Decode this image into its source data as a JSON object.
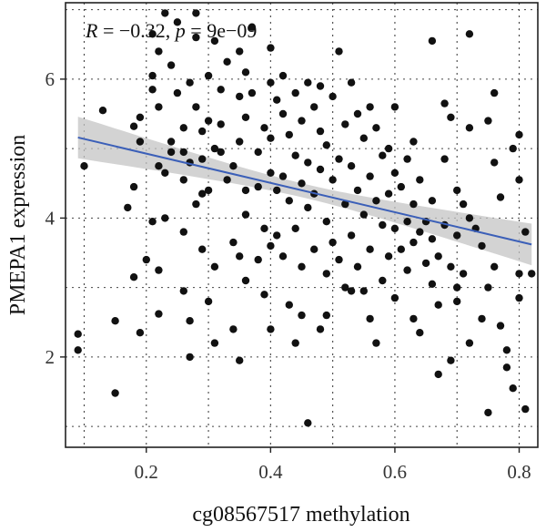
{
  "chart_data": {
    "type": "scatter",
    "title": "",
    "xlabel": "cg08567517 methylation",
    "ylabel": "PMEPA1 expression",
    "xlim": [
      0.07,
      0.83
    ],
    "ylim": [
      0.7,
      7.1
    ],
    "xticks": [
      0.2,
      0.4,
      0.6,
      0.8
    ],
    "yticks": [
      2,
      4,
      6
    ],
    "x_tick_labels": [
      "0.2",
      "0.4",
      "0.6",
      "0.8"
    ],
    "y_tick_labels": [
      "2",
      "4",
      "6"
    ],
    "grid": "dotted",
    "annotation": {
      "r_label": "R",
      "r_text": " = −0.32, ",
      "p_label": "p",
      "p_text": " = 9e−09"
    },
    "regression": {
      "x": [
        0.09,
        0.82
      ],
      "y": [
        5.16,
        3.62
      ],
      "ci_width_at_ends": 0.3,
      "ci_width_at_center": 0.1,
      "line_color": "#3b5fb8",
      "band_color": "#c4c4c4"
    },
    "point_color": "#111111",
    "points": [
      [
        0.09,
        2.33
      ],
      [
        0.09,
        2.1
      ],
      [
        0.1,
        4.75
      ],
      [
        0.13,
        5.55
      ],
      [
        0.15,
        1.48
      ],
      [
        0.15,
        2.52
      ],
      [
        0.17,
        4.15
      ],
      [
        0.18,
        5.32
      ],
      [
        0.18,
        4.45
      ],
      [
        0.18,
        3.15
      ],
      [
        0.19,
        5.45
      ],
      [
        0.19,
        5.1
      ],
      [
        0.2,
        3.4
      ],
      [
        0.21,
        6.65
      ],
      [
        0.21,
        6.05
      ],
      [
        0.21,
        5.85
      ],
      [
        0.22,
        6.4
      ],
      [
        0.22,
        5.6
      ],
      [
        0.22,
        4.75
      ],
      [
        0.22,
        3.25
      ],
      [
        0.22,
        2.62
      ],
      [
        0.23,
        4.0
      ],
      [
        0.23,
        4.65
      ],
      [
        0.23,
        6.95
      ],
      [
        0.24,
        6.2
      ],
      [
        0.24,
        5.1
      ],
      [
        0.25,
        6.82
      ],
      [
        0.25,
        5.8
      ],
      [
        0.26,
        5.3
      ],
      [
        0.26,
        4.95
      ],
      [
        0.26,
        4.55
      ],
      [
        0.26,
        3.8
      ],
      [
        0.26,
        2.95
      ],
      [
        0.27,
        5.95
      ],
      [
        0.27,
        4.8
      ],
      [
        0.27,
        2.52
      ],
      [
        0.27,
        2.0
      ],
      [
        0.28,
        6.95
      ],
      [
        0.28,
        6.6
      ],
      [
        0.28,
        5.6
      ],
      [
        0.29,
        5.25
      ],
      [
        0.29,
        4.85
      ],
      [
        0.29,
        4.35
      ],
      [
        0.29,
        3.55
      ],
      [
        0.3,
        6.05
      ],
      [
        0.3,
        5.4
      ],
      [
        0.3,
        4.4
      ],
      [
        0.3,
        2.8
      ],
      [
        0.31,
        6.55
      ],
      [
        0.31,
        5.0
      ],
      [
        0.31,
        3.3
      ],
      [
        0.31,
        2.2
      ],
      [
        0.32,
        5.85
      ],
      [
        0.32,
        5.35
      ],
      [
        0.32,
        4.95
      ],
      [
        0.33,
        6.25
      ],
      [
        0.33,
        4.55
      ],
      [
        0.34,
        4.75
      ],
      [
        0.34,
        3.65
      ],
      [
        0.35,
        6.4
      ],
      [
        0.35,
        5.75
      ],
      [
        0.35,
        5.1
      ],
      [
        0.35,
        3.45
      ],
      [
        0.35,
        1.95
      ],
      [
        0.36,
        6.1
      ],
      [
        0.36,
        5.45
      ],
      [
        0.36,
        4.05
      ],
      [
        0.36,
        3.1
      ],
      [
        0.37,
        6.75
      ],
      [
        0.37,
        5.8
      ],
      [
        0.38,
        4.95
      ],
      [
        0.38,
        4.45
      ],
      [
        0.38,
        3.4
      ],
      [
        0.39,
        5.3
      ],
      [
        0.39,
        3.85
      ],
      [
        0.4,
        6.45
      ],
      [
        0.4,
        5.95
      ],
      [
        0.4,
        5.15
      ],
      [
        0.4,
        4.65
      ],
      [
        0.4,
        3.6
      ],
      [
        0.4,
        2.4
      ],
      [
        0.41,
        5.7
      ],
      [
        0.41,
        4.4
      ],
      [
        0.41,
        3.75
      ],
      [
        0.42,
        6.05
      ],
      [
        0.42,
        5.5
      ],
      [
        0.42,
        4.6
      ],
      [
        0.42,
        3.45
      ],
      [
        0.43,
        5.2
      ],
      [
        0.43,
        4.25
      ],
      [
        0.43,
        2.75
      ],
      [
        0.44,
        5.8
      ],
      [
        0.44,
        4.9
      ],
      [
        0.44,
        3.85
      ],
      [
        0.45,
        5.4
      ],
      [
        0.45,
        4.5
      ],
      [
        0.45,
        3.3
      ],
      [
        0.45,
        2.6
      ],
      [
        0.46,
        5.95
      ],
      [
        0.46,
        4.8
      ],
      [
        0.46,
        4.15
      ],
      [
        0.46,
        1.05
      ],
      [
        0.47,
        5.6
      ],
      [
        0.47,
        4.35
      ],
      [
        0.47,
        3.55
      ],
      [
        0.48,
        5.25
      ],
      [
        0.48,
        4.7
      ],
      [
        0.48,
        2.4
      ],
      [
        0.49,
        5.05
      ],
      [
        0.49,
        3.95
      ],
      [
        0.49,
        3.2
      ],
      [
        0.5,
        5.75
      ],
      [
        0.5,
        4.55
      ],
      [
        0.5,
        3.65
      ],
      [
        0.51,
        6.4
      ],
      [
        0.51,
        4.85
      ],
      [
        0.51,
        3.4
      ],
      [
        0.52,
        5.35
      ],
      [
        0.52,
        4.2
      ],
      [
        0.52,
        3.0
      ],
      [
        0.53,
        5.95
      ],
      [
        0.53,
        4.75
      ],
      [
        0.53,
        3.75
      ],
      [
        0.54,
        5.5
      ],
      [
        0.54,
        4.4
      ],
      [
        0.54,
        3.3
      ],
      [
        0.55,
        5.15
      ],
      [
        0.55,
        4.05
      ],
      [
        0.55,
        2.95
      ],
      [
        0.56,
        5.6
      ],
      [
        0.56,
        4.6
      ],
      [
        0.56,
        3.55
      ],
      [
        0.56,
        2.55
      ],
      [
        0.57,
        5.3
      ],
      [
        0.57,
        4.25
      ],
      [
        0.58,
        4.9
      ],
      [
        0.58,
        3.9
      ],
      [
        0.58,
        3.1
      ],
      [
        0.59,
        5.0
      ],
      [
        0.59,
        4.35
      ],
      [
        0.59,
        3.45
      ],
      [
        0.6,
        4.65
      ],
      [
        0.6,
        3.85
      ],
      [
        0.6,
        2.85
      ],
      [
        0.61,
        4.45
      ],
      [
        0.61,
        3.55
      ],
      [
        0.62,
        4.85
      ],
      [
        0.62,
        3.95
      ],
      [
        0.62,
        3.25
      ],
      [
        0.63,
        4.2
      ],
      [
        0.63,
        3.65
      ],
      [
        0.63,
        2.55
      ],
      [
        0.64,
        4.55
      ],
      [
        0.64,
        3.8
      ],
      [
        0.64,
        2.35
      ],
      [
        0.65,
        3.95
      ],
      [
        0.65,
        3.35
      ],
      [
        0.66,
        6.55
      ],
      [
        0.66,
        4.25
      ],
      [
        0.66,
        3.7
      ],
      [
        0.67,
        3.45
      ],
      [
        0.67,
        2.75
      ],
      [
        0.67,
        1.75
      ],
      [
        0.68,
        5.65
      ],
      [
        0.68,
        4.85
      ],
      [
        0.68,
        3.9
      ],
      [
        0.69,
        5.45
      ],
      [
        0.69,
        3.3
      ],
      [
        0.69,
        1.95
      ],
      [
        0.7,
        4.4
      ],
      [
        0.7,
        3.75
      ],
      [
        0.7,
        2.8
      ],
      [
        0.71,
        4.2
      ],
      [
        0.71,
        3.2
      ],
      [
        0.72,
        6.65
      ],
      [
        0.72,
        5.3
      ],
      [
        0.72,
        4.0
      ],
      [
        0.72,
        2.2
      ],
      [
        0.73,
        3.85
      ],
      [
        0.74,
        3.6
      ],
      [
        0.75,
        5.4
      ],
      [
        0.75,
        3.0
      ],
      [
        0.75,
        1.2
      ],
      [
        0.76,
        5.8
      ],
      [
        0.76,
        4.8
      ],
      [
        0.77,
        4.3
      ],
      [
        0.77,
        2.45
      ],
      [
        0.78,
        1.85
      ],
      [
        0.79,
        5.0
      ],
      [
        0.79,
        1.55
      ],
      [
        0.8,
        5.2
      ],
      [
        0.8,
        4.55
      ],
      [
        0.8,
        3.2
      ],
      [
        0.8,
        2.85
      ],
      [
        0.81,
        1.25
      ],
      [
        0.81,
        3.8
      ],
      [
        0.82,
        3.2
      ],
      [
        0.57,
        2.2
      ],
      [
        0.53,
        2.95
      ],
      [
        0.49,
        2.6
      ],
      [
        0.44,
        2.2
      ],
      [
        0.39,
        2.9
      ],
      [
        0.34,
        2.4
      ],
      [
        0.66,
        3.05
      ],
      [
        0.7,
        3.0
      ],
      [
        0.74,
        2.55
      ],
      [
        0.76,
        3.3
      ],
      [
        0.78,
        2.1
      ],
      [
        0.6,
        5.6
      ],
      [
        0.63,
        5.1
      ],
      [
        0.48,
        5.9
      ],
      [
        0.36,
        4.4
      ],
      [
        0.28,
        4.2
      ],
      [
        0.24,
        4.95
      ],
      [
        0.21,
        3.95
      ],
      [
        0.19,
        2.35
      ]
    ]
  }
}
